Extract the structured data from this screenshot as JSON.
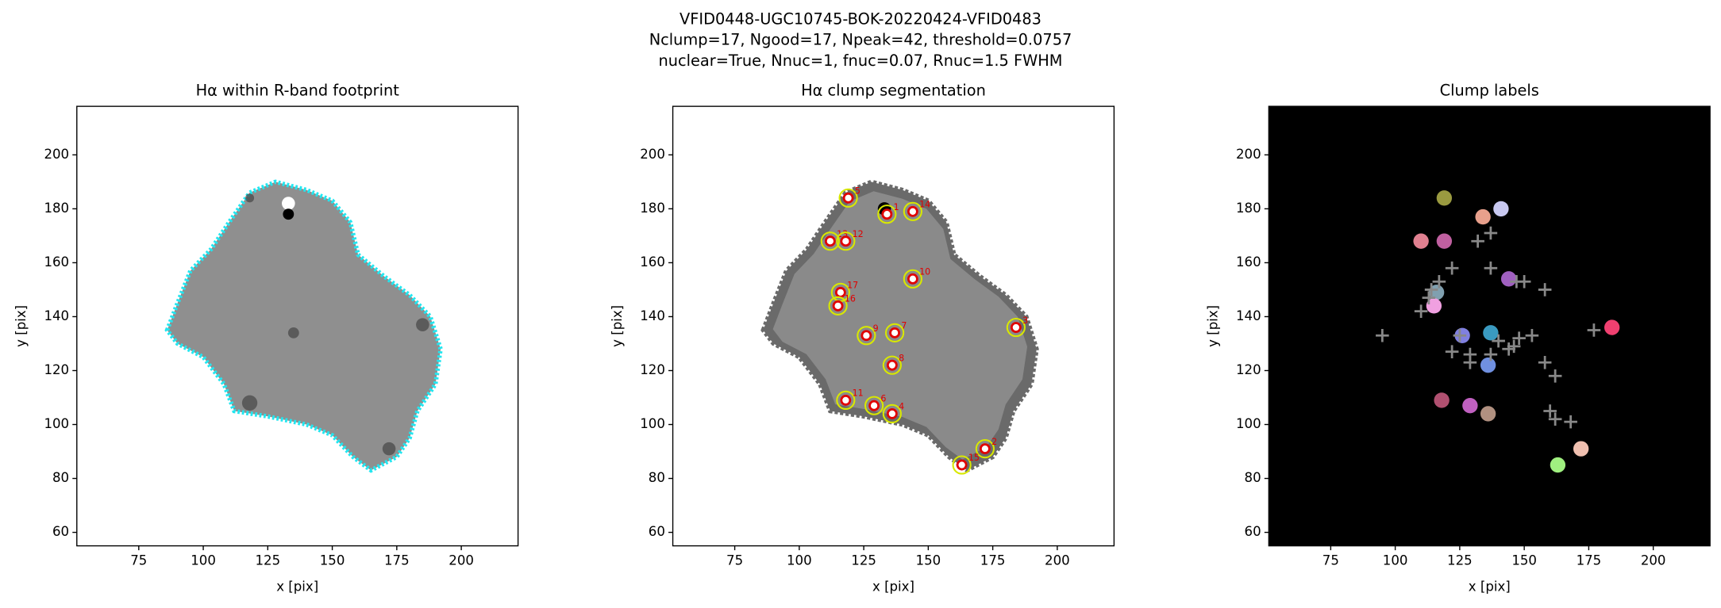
{
  "figure_title": [
    "VFID0448-UGC10745-BOK-20220424-VFID0483",
    "Nclump=17, Ngood=17, Npeak=42, threshold=0.0757",
    "nuclear=True, Nnuc=1, fnuc=0.07, Rnuc=1.5 FWHM"
  ],
  "chart_data": [
    {
      "type": "footprint",
      "title": "Hα within R-band footprint",
      "x_label": "x [pix]",
      "y_label": "y [pix]",
      "xlim": [
        51,
        222
      ],
      "ylim": [
        55,
        218
      ],
      "xticks": [
        75,
        100,
        125,
        150,
        175,
        200
      ],
      "yticks": [
        60,
        80,
        100,
        120,
        140,
        160,
        180,
        200
      ],
      "outline_color": "#22e6f0"
    },
    {
      "type": "segmentation",
      "title": "Hα clump segmentation",
      "x_label": "x [pix]",
      "y_label": "y [pix]",
      "xlim": [
        51,
        222
      ],
      "ylim": [
        55,
        218
      ],
      "xticks": [
        75,
        100,
        125,
        150,
        175,
        200
      ],
      "yticks": [
        60,
        80,
        100,
        120,
        140,
        160,
        180,
        200
      ],
      "clumps": {
        "x": [
          119,
          134,
          144,
          112,
          118,
          144,
          116,
          115,
          126,
          137,
          136,
          184,
          118,
          129,
          136,
          172,
          163
        ],
        "y": [
          184,
          178,
          179,
          168,
          168,
          154,
          149,
          144,
          133,
          134,
          122,
          136,
          109,
          107,
          104,
          91,
          85
        ],
        "labels": [
          "5",
          "1",
          "14",
          "13",
          "12",
          "10",
          "17",
          "16",
          "9",
          "7",
          "8",
          "3",
          "11",
          "6",
          "4",
          "2",
          "15"
        ]
      }
    },
    {
      "type": "labels",
      "title": "Clump labels",
      "x_label": "x [pix]",
      "y_label": "y [pix]",
      "xlim": [
        51,
        222
      ],
      "ylim": [
        55,
        218
      ],
      "xticks": [
        75,
        100,
        125,
        150,
        175,
        200
      ],
      "yticks": [
        60,
        80,
        100,
        120,
        140,
        160,
        180,
        200
      ],
      "clumps": {
        "x": [
          119,
          134,
          141,
          110,
          119,
          144,
          116,
          115,
          126,
          137,
          136,
          184,
          118,
          129,
          136,
          172,
          163
        ],
        "y": [
          184,
          177,
          180,
          168,
          168,
          154,
          149,
          144,
          133,
          134,
          122,
          136,
          109,
          107,
          104,
          91,
          85
        ],
        "colors": [
          "#9a9a40",
          "#e8a08c",
          "#c8c8f0",
          "#e08090",
          "#c060a0",
          "#a060c0",
          "#80a0b0",
          "#f0a0e0",
          "#8080e0",
          "#3a9ac0",
          "#7090e0",
          "#f04070",
          "#b05070",
          "#c060c0",
          "#b09080",
          "#f0c0b0",
          "#a0f080"
        ]
      },
      "peaks": {
        "x": [
          95,
          110,
          113,
          117,
          122,
          132,
          137,
          122,
          129,
          129,
          137,
          137,
          140,
          146,
          147,
          150,
          153,
          158,
          158,
          162,
          160,
          162,
          168,
          177,
          125,
          148,
          144,
          114
        ],
        "y": [
          133,
          142,
          147,
          153,
          158,
          168,
          171,
          127,
          126,
          123,
          126,
          158,
          131,
          129,
          153,
          153,
          133,
          150,
          123,
          118,
          105,
          102,
          101,
          135,
          133,
          132,
          128,
          150
        ]
      }
    }
  ]
}
